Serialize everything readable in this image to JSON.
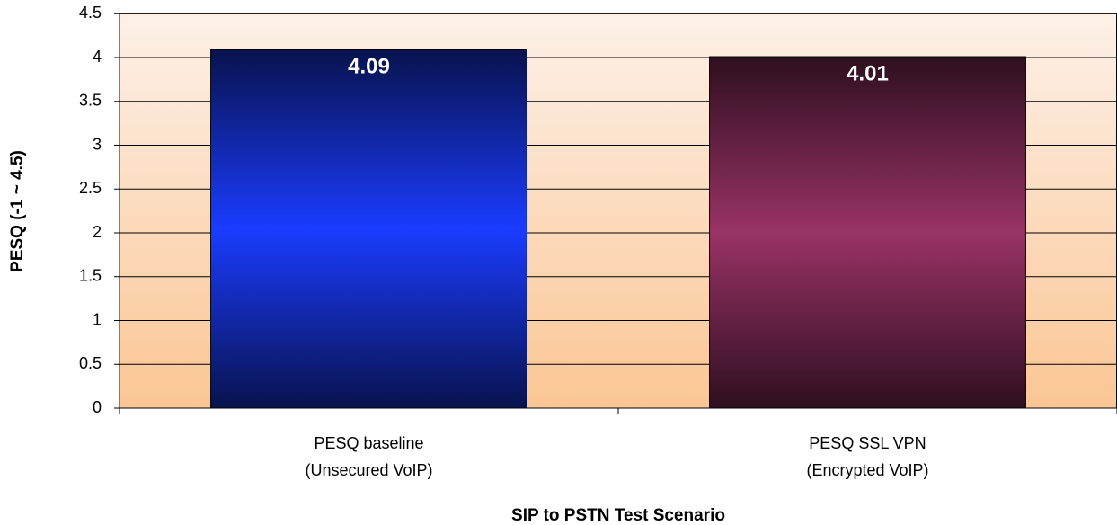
{
  "chart_data": {
    "type": "bar",
    "categories": [
      [
        "PESQ baseline",
        "(Unsecured VoIP)"
      ],
      [
        "PESQ SSL VPN",
        "(Encrypted VoIP)"
      ]
    ],
    "values": [
      4.09,
      4.01
    ],
    "colors": [
      "#1a3cff",
      "#993366"
    ],
    "x_label": "SIP to PSTN Test Scenario",
    "y_label": "PESQ (-1 ~ 4.5)",
    "ylim": [
      0,
      4.5
    ],
    "yticks": [
      0,
      0.5,
      1,
      1.5,
      2,
      2.5,
      3,
      3.5,
      4,
      4.5
    ],
    "grid": true
  }
}
